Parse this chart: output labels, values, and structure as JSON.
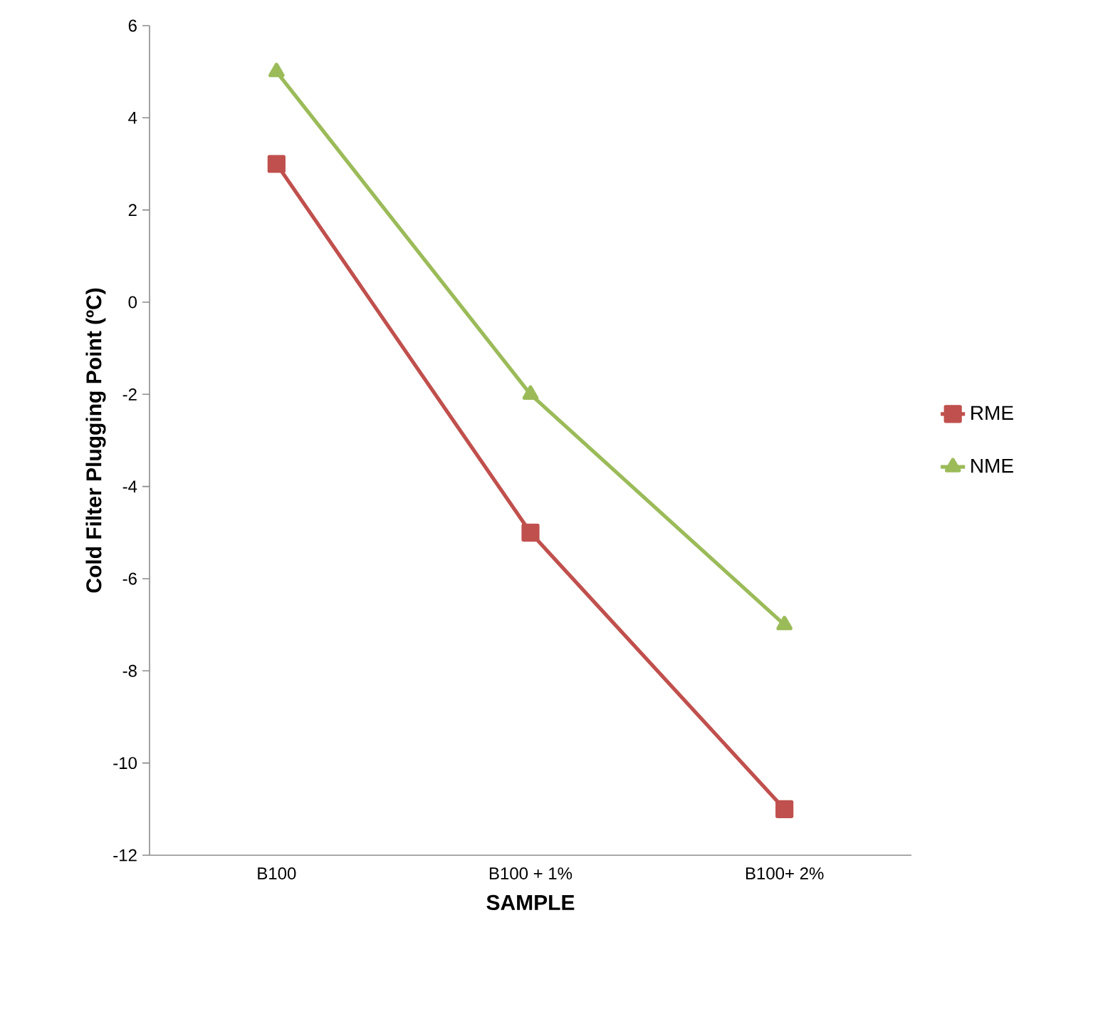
{
  "chart_data": {
    "type": "line",
    "xlabel": "SAMPLE",
    "ylabel": "Cold Filter Plugging Point (ºC)",
    "categories": [
      "B100",
      "B100 + 1%",
      "B100+ 2%"
    ],
    "series": [
      {
        "name": "RME",
        "color": "#c0504d",
        "marker": "square",
        "values": [
          3,
          -5,
          -11
        ]
      },
      {
        "name": "NME",
        "color": "#9bbb59",
        "marker": "triangle",
        "values": [
          5,
          -2,
          -7
        ]
      }
    ],
    "ylim": [
      -12,
      6
    ],
    "yticks": [
      -12,
      -10,
      -8,
      -6,
      -4,
      -2,
      0,
      2,
      4,
      6
    ],
    "grid": false,
    "legend": "right",
    "line_style": "solid"
  }
}
